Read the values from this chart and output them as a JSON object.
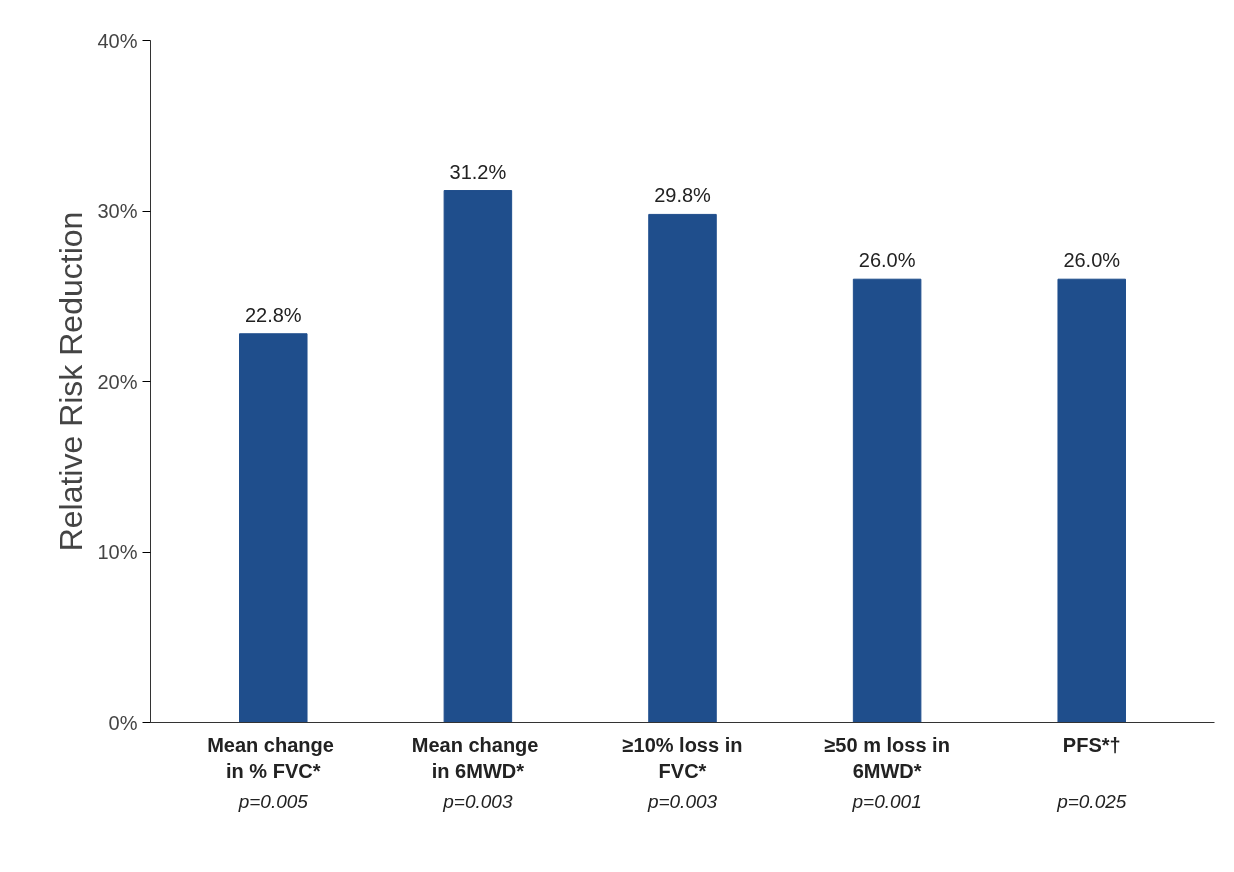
{
  "chart_data": {
    "type": "bar",
    "ylabel": "Relative Risk Reduction",
    "categories": [
      "Mean  change\nin % FVC*",
      "Mean  change\nin 6MWD*",
      "≥10% loss in\nFVC*",
      "≥50 m loss in\n6MWD*",
      "PFS*†"
    ],
    "values": [
      22.8,
      31.2,
      29.8,
      26.0,
      26.0
    ],
    "color": "#1f4e8c",
    "value_labels": [
      "22.8%",
      "31.2%",
      "29.8%",
      "26.0%",
      "26.0%"
    ],
    "ylim": [
      0,
      40
    ],
    "yticks": [
      {
        "value": 0,
        "label": "0%"
      },
      {
        "value": 10,
        "label": "10%"
      },
      {
        "value": 20,
        "label": "20%"
      },
      {
        "value": 30,
        "label": "30%"
      },
      {
        "value": 40,
        "label": "40%"
      }
    ],
    "grid": false,
    "annotations": [
      "p=0.005",
      "p=0.003",
      "p=0.003",
      "p=0.001",
      "p=0.025"
    ]
  }
}
